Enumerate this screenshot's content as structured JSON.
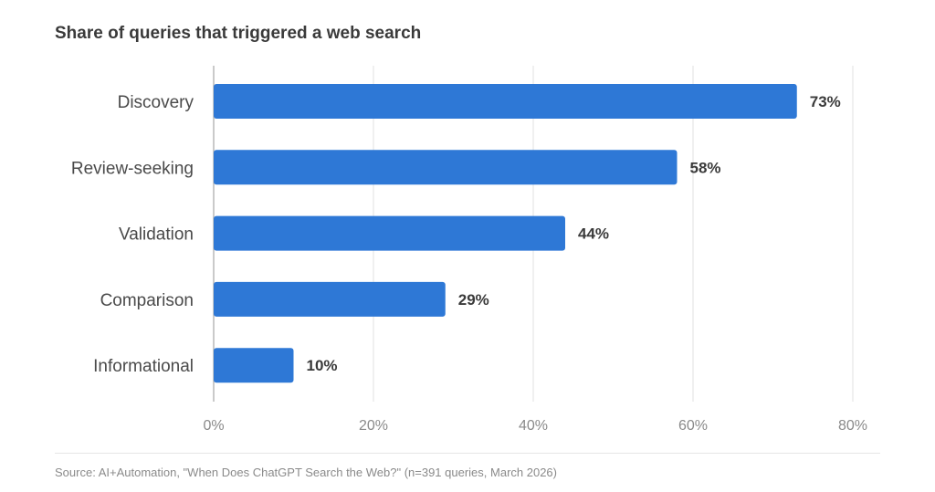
{
  "chart_data": {
    "type": "bar",
    "orientation": "horizontal",
    "title": "Share of queries that triggered a web search",
    "categories": [
      "Discovery",
      "Review-seeking",
      "Validation",
      "Comparison",
      "Informational"
    ],
    "values": [
      73,
      58,
      44,
      29,
      10
    ],
    "value_labels": [
      "73%",
      "58%",
      "44%",
      "29%",
      "10%"
    ],
    "xlim": [
      0,
      80
    ],
    "xticks": [
      0,
      20,
      40,
      60,
      80
    ],
    "xtick_labels": [
      "0%",
      "20%",
      "40%",
      "60%",
      "80%"
    ],
    "xlabel": "",
    "ylabel": "",
    "grid": true,
    "bar_color": "#2e78d6",
    "source": "Source: AI+Automation, \"When Does ChatGPT Search the Web?\" (n=391 queries, March 2026)"
  }
}
